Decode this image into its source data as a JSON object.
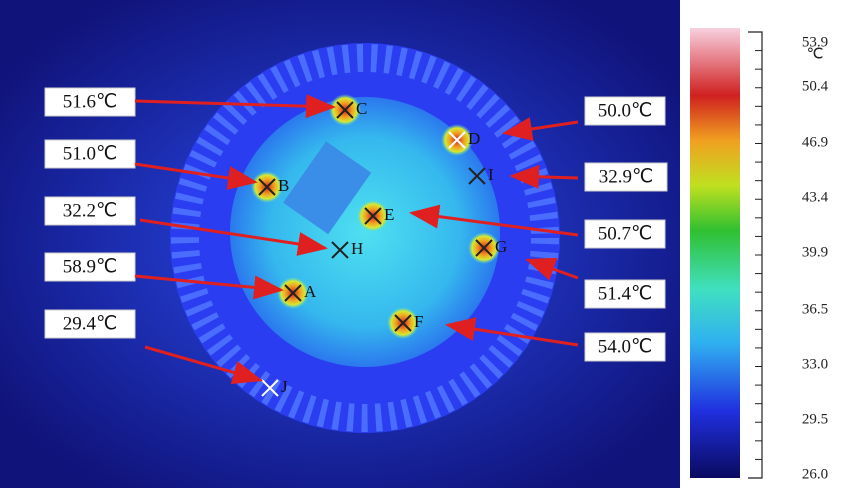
{
  "points": [
    {
      "id": "C",
      "temp": "51.6℃"
    },
    {
      "id": "B",
      "temp": "51.0℃"
    },
    {
      "id": "H",
      "temp": "32.2℃"
    },
    {
      "id": "A",
      "temp": "58.9℃"
    },
    {
      "id": "J",
      "temp": "29.4℃"
    },
    {
      "id": "D",
      "temp": "50.0℃"
    },
    {
      "id": "I",
      "temp": "32.9℃"
    },
    {
      "id": "E",
      "temp": "50.7℃"
    },
    {
      "id": "G",
      "temp": "51.4℃"
    },
    {
      "id": "F",
      "temp": "54.0℃"
    }
  ],
  "colorbar": {
    "unit": "℃",
    "ticks": [
      "53.9",
      "50.4",
      "46.9",
      "43.4",
      "39.9",
      "36.5",
      "33.0",
      "29.5",
      "26.0"
    ]
  }
}
